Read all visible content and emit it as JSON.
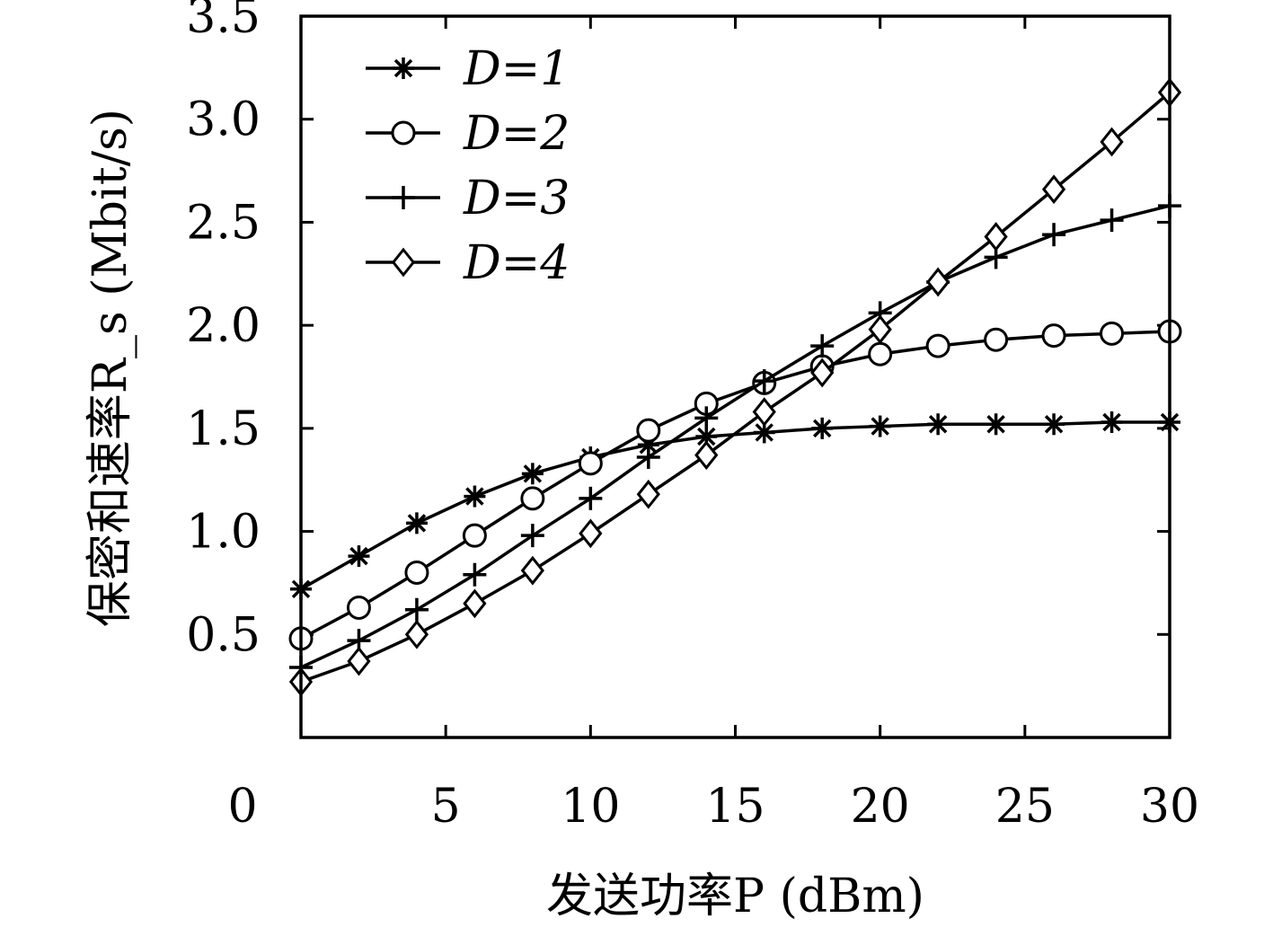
{
  "chart_data": {
    "type": "line",
    "title": "",
    "xlabel": "发送功率P (dBm)",
    "ylabel": "保密和速率R_s (Mbit/s)",
    "x_ticks": [
      "0",
      "5",
      "10",
      "15",
      "20",
      "25",
      "30"
    ],
    "y_ticks": [
      "0.5",
      "1.0",
      "1.5",
      "2.0",
      "2.5",
      "3.0",
      "3.5"
    ],
    "xlim": [
      0,
      30
    ],
    "ylim": [
      0,
      3.5
    ],
    "legend_position": "top-left",
    "grid": false,
    "x": [
      0,
      2,
      4,
      6,
      8,
      10,
      12,
      14,
      16,
      18,
      20,
      22,
      24,
      26,
      28,
      30
    ],
    "series": [
      {
        "name": "D=1",
        "marker": "asterisk",
        "values": [
          0.72,
          0.88,
          1.04,
          1.17,
          1.28,
          1.36,
          1.42,
          1.46,
          1.48,
          1.5,
          1.51,
          1.52,
          1.52,
          1.52,
          1.53,
          1.53
        ]
      },
      {
        "name": "D=2",
        "marker": "circle",
        "values": [
          0.48,
          0.63,
          0.8,
          0.98,
          1.16,
          1.33,
          1.49,
          1.62,
          1.72,
          1.8,
          1.86,
          1.9,
          1.93,
          1.95,
          1.96,
          1.97
        ]
      },
      {
        "name": "D=3",
        "marker": "plus",
        "values": [
          0.34,
          0.47,
          0.62,
          0.79,
          0.98,
          1.16,
          1.36,
          1.55,
          1.73,
          1.9,
          2.06,
          2.21,
          2.33,
          2.44,
          2.51,
          2.58
        ]
      },
      {
        "name": "D=4",
        "marker": "diamond",
        "values": [
          0.27,
          0.37,
          0.5,
          0.65,
          0.81,
          0.99,
          1.18,
          1.37,
          1.58,
          1.77,
          1.98,
          2.21,
          2.43,
          2.66,
          2.89,
          3.13
        ]
      }
    ]
  }
}
